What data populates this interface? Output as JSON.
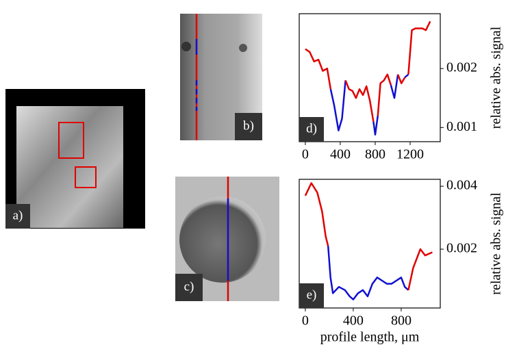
{
  "panel_labels": [
    "a)",
    "b)",
    "c)"
  ],
  "chart_data": [
    {
      "type": "line",
      "panel_label": "d)",
      "ylabel": "relative abs. signal",
      "x": [
        0,
        50,
        100,
        150,
        200,
        250,
        290,
        330,
        380,
        420,
        460,
        500,
        540,
        580,
        620,
        660,
        700,
        740,
        780,
        800,
        830,
        860,
        900,
        940,
        980,
        1020,
        1060,
        1100,
        1140,
        1180,
        1220,
        1260,
        1300,
        1340,
        1380,
        1430
      ],
      "values": [
        0.00233,
        0.00228,
        0.00212,
        0.00215,
        0.00196,
        0.002,
        0.00165,
        0.00138,
        0.00095,
        0.00115,
        0.0018,
        0.00165,
        0.00162,
        0.0015,
        0.00165,
        0.00155,
        0.0017,
        0.00145,
        0.0011,
        0.00088,
        0.0012,
        0.00175,
        0.0018,
        0.0019,
        0.00172,
        0.0015,
        0.0019,
        0.00175,
        0.00185,
        0.0019,
        0.00265,
        0.00268,
        0.00268,
        0.00268,
        0.00265,
        0.0028
      ],
      "segment_colors": [
        "#e00000",
        "#e00000",
        "#e00000",
        "#e00000",
        "#e00000",
        "#e00000",
        "#1010d0",
        "#1010d0",
        "#1010d0",
        "#1010d0",
        "#e00000",
        "#e00000",
        "#e00000",
        "#e00000",
        "#e00000",
        "#e00000",
        "#e00000",
        "#e00000",
        "#1010d0",
        "#1010d0",
        "#e00000",
        "#e00000",
        "#e00000",
        "#e00000",
        "#1010d0",
        "#1010d0",
        "#e00000",
        "#e00000",
        "#1010d0",
        "#e00000",
        "#e00000",
        "#e00000",
        "#e00000",
        "#e00000",
        "#e00000"
      ],
      "xlim": [
        -70,
        1545
      ],
      "ylim": [
        0.00076,
        0.00293
      ],
      "xticks": [
        0,
        400,
        800,
        1200
      ],
      "yticks": [
        0.001,
        0.002
      ]
    },
    {
      "type": "line",
      "panel_label": "e)",
      "ylabel": "relative abs. signal",
      "xlabel": "profile length, μm",
      "x": [
        0,
        50,
        100,
        140,
        170,
        190,
        210,
        230,
        280,
        330,
        370,
        400,
        440,
        480,
        520,
        560,
        600,
        640,
        680,
        720,
        760,
        800,
        830,
        860,
        900,
        960,
        1000,
        1060
      ],
      "values": [
        0.0037,
        0.0041,
        0.0038,
        0.0032,
        0.0024,
        0.0021,
        0.0011,
        0.0006,
        0.0008,
        0.0007,
        0.0005,
        0.0004,
        0.0006,
        0.0007,
        0.0005,
        0.0009,
        0.0011,
        0.001,
        0.0009,
        0.0009,
        0.001,
        0.0011,
        0.0008,
        0.0007,
        0.0014,
        0.002,
        0.0018,
        0.0019
      ],
      "segment_colors": [
        "#e00000",
        "#e00000",
        "#e00000",
        "#e00000",
        "#e00000",
        "#1010d0",
        "#1010d0",
        "#1010d0",
        "#1010d0",
        "#1010d0",
        "#1010d0",
        "#1010d0",
        "#1010d0",
        "#1010d0",
        "#1010d0",
        "#1010d0",
        "#1010d0",
        "#1010d0",
        "#1010d0",
        "#1010d0",
        "#1010d0",
        "#1010d0",
        "#1010d0",
        "#e00000",
        "#e00000",
        "#e00000",
        "#e00000"
      ],
      "xlim": [
        -51,
        1126
      ],
      "ylim": [
        0.00013,
        0.00422
      ],
      "xticks": [
        0,
        400,
        800
      ],
      "yticks": [
        0.002,
        0.004
      ]
    }
  ]
}
